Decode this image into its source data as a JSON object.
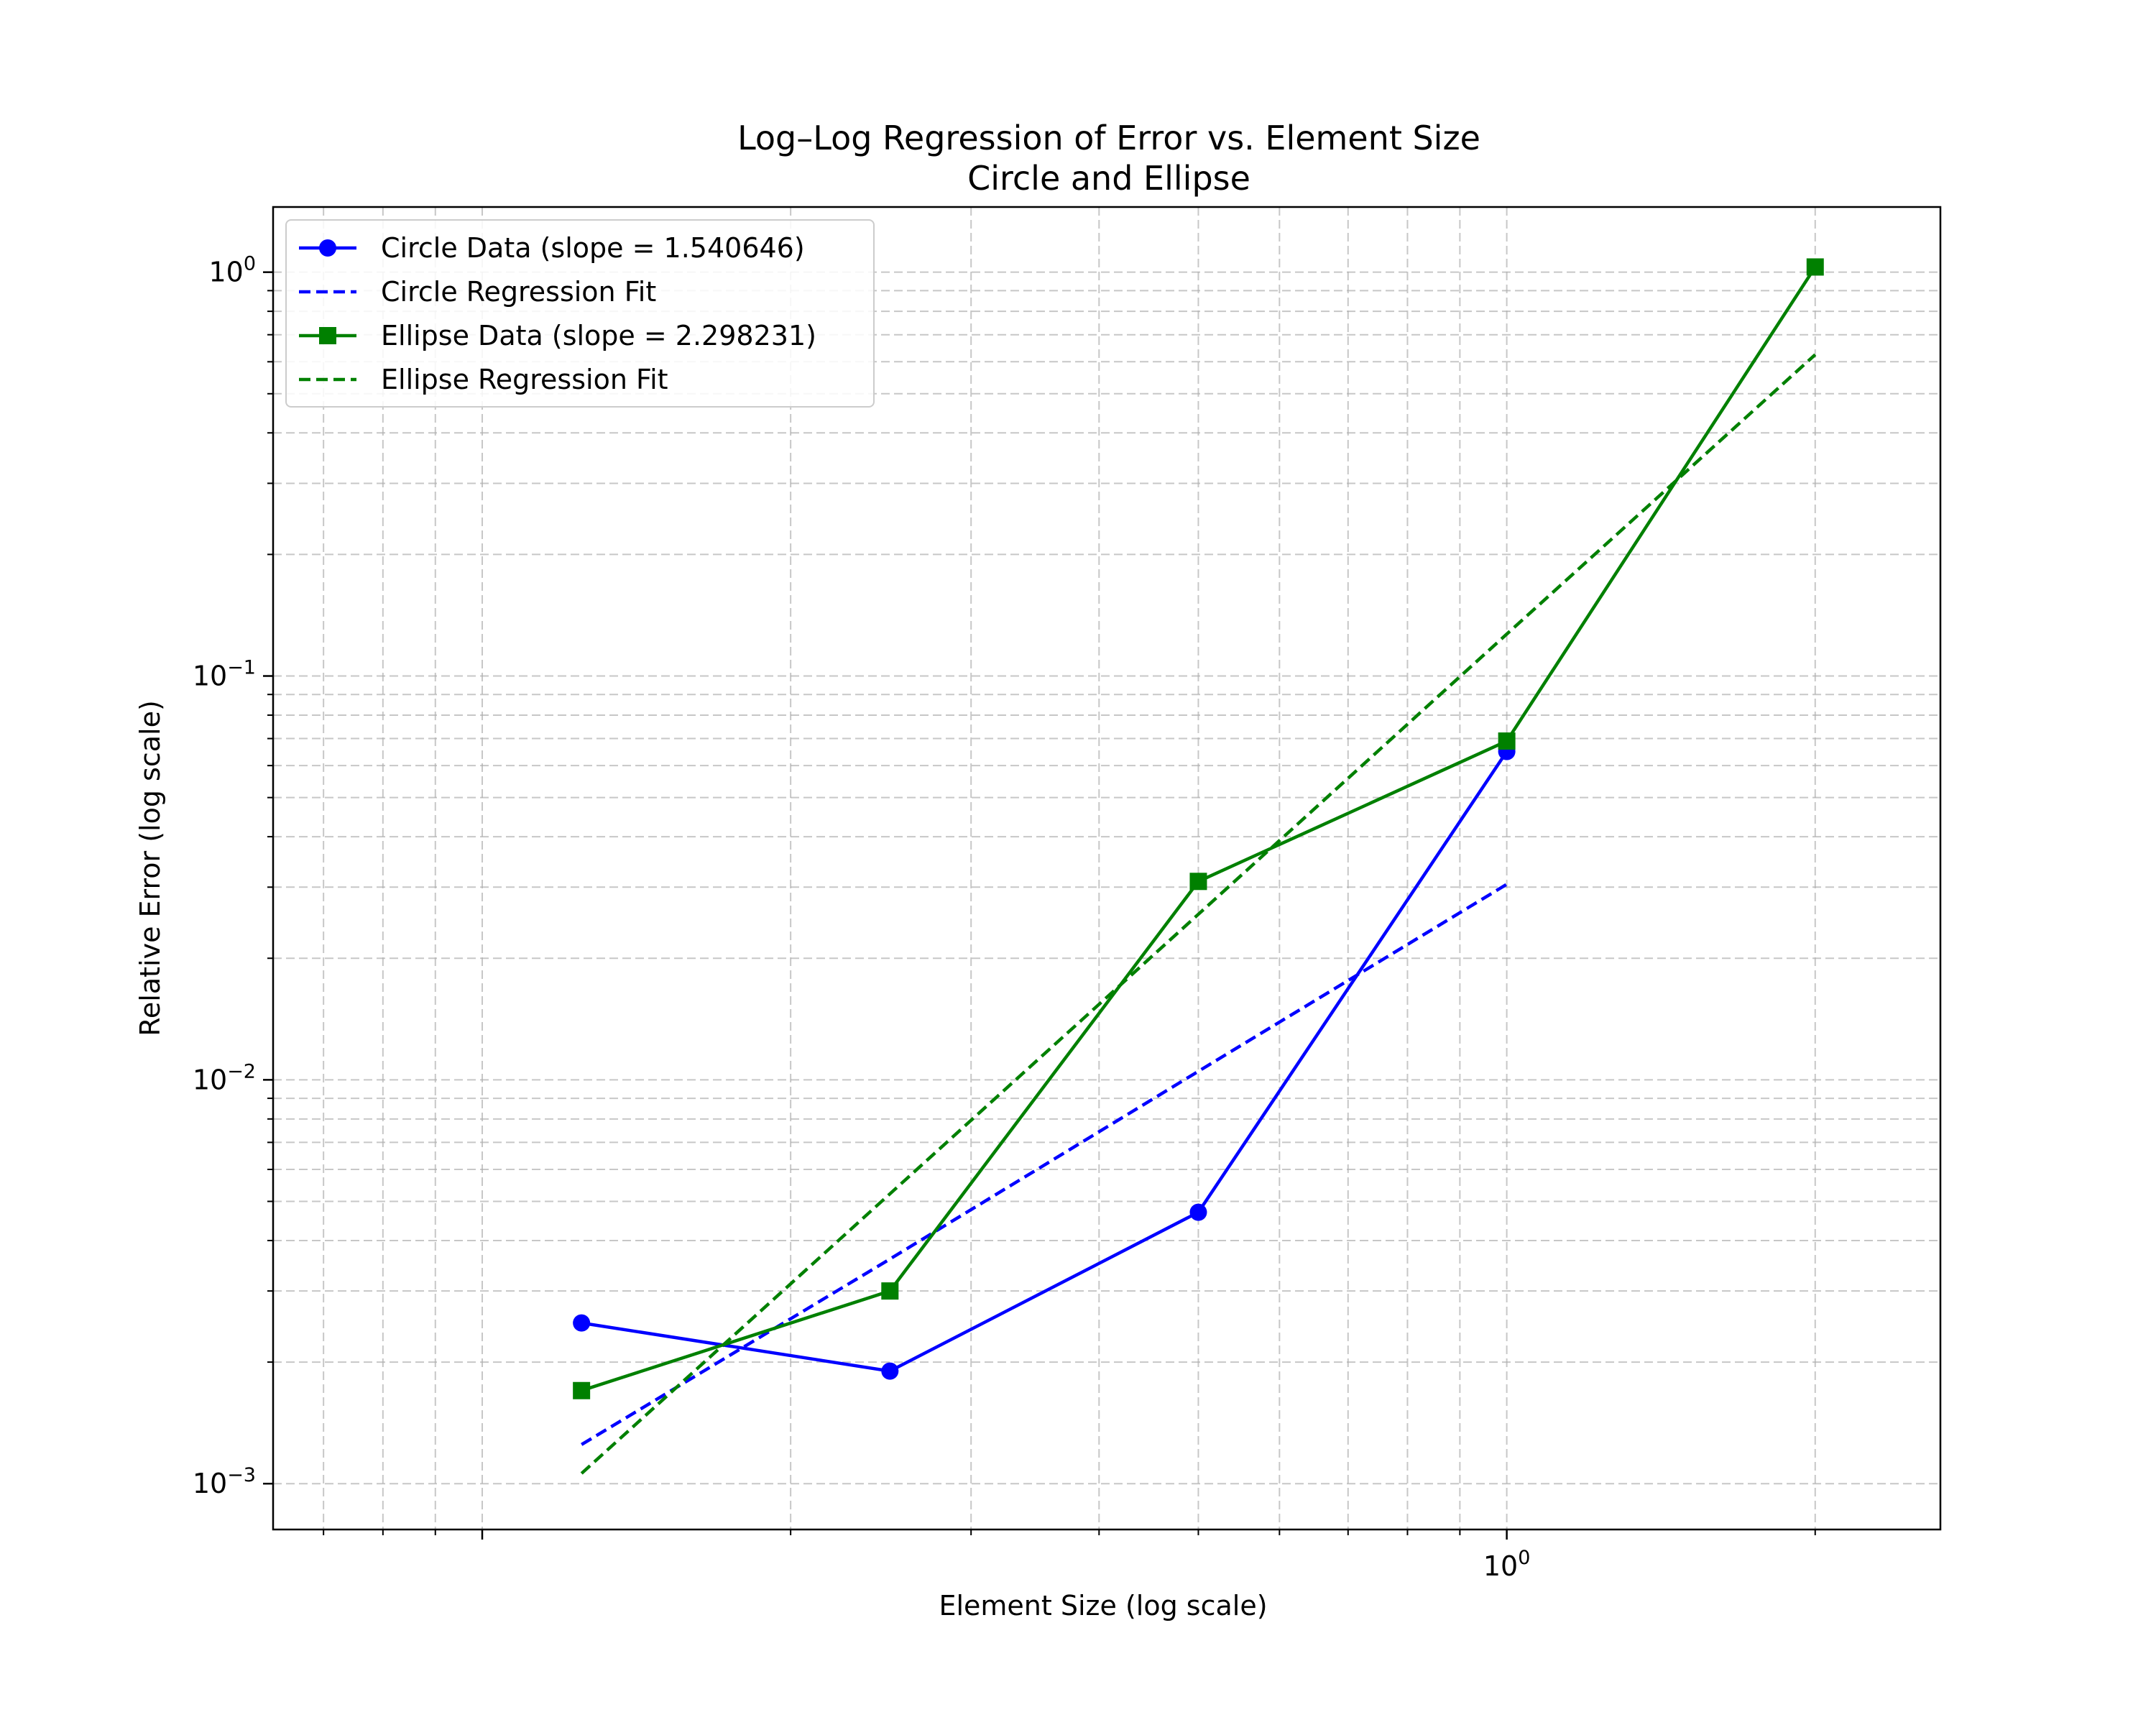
{
  "chart_data": {
    "type": "line",
    "title": "Log–Log Regression of Error vs. Element Size",
    "subtitle": "Circle and Ellipse",
    "xlabel": "Element Size (log scale)",
    "ylabel": "Relative Error (log scale)",
    "xscale": "log",
    "yscale": "log",
    "xlim": [
      0.0625,
      2.65
    ],
    "ylim": [
      0.00077,
      1.45
    ],
    "x_tick_labels": [
      {
        "value": 1,
        "base": "10",
        "exp": "0"
      }
    ],
    "y_tick_labels": [
      {
        "value": 0.001,
        "base": "10",
        "exp": "−3"
      },
      {
        "value": 0.01,
        "base": "10",
        "exp": "−2"
      },
      {
        "value": 0.1,
        "base": "10",
        "exp": "−1"
      },
      {
        "value": 1,
        "base": "10",
        "exp": "0"
      }
    ],
    "grid": true,
    "legend_position": "top-left",
    "series": [
      {
        "name": "Circle Data (slope = 1.540646)",
        "kind": "data",
        "marker": "circle",
        "color": "#0000ff",
        "x": [
          0.125,
          0.25,
          0.5,
          1.0
        ],
        "y": [
          0.0025,
          0.0019,
          0.0047,
          0.065
        ]
      },
      {
        "name": "Circle Regression Fit",
        "kind": "fit",
        "color": "#0000ff",
        "x": [
          0.125,
          0.25,
          0.5,
          1.0
        ],
        "y": [
          0.00125,
          0.0036,
          0.0105,
          0.0305
        ]
      },
      {
        "name": "Ellipse Data (slope = 2.298231)",
        "kind": "data",
        "marker": "square",
        "color": "#008000",
        "x": [
          0.125,
          0.25,
          0.5,
          1.0,
          2.0
        ],
        "y": [
          0.0017,
          0.003,
          0.031,
          0.069,
          1.03
        ]
      },
      {
        "name": "Ellipse Regression Fit",
        "kind": "fit",
        "color": "#008000",
        "x": [
          0.125,
          0.25,
          0.5,
          1.0,
          2.0
        ],
        "y": [
          0.00106,
          0.00522,
          0.0257,
          0.127,
          0.625
        ]
      }
    ]
  }
}
